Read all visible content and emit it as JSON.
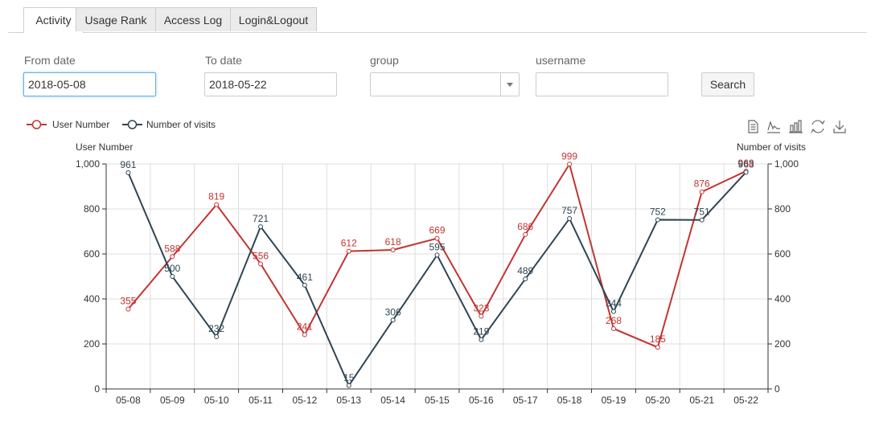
{
  "tabs": [
    {
      "label": "Activity",
      "active": true
    },
    {
      "label": "Usage Rank",
      "active": false
    },
    {
      "label": "Access Log",
      "active": false
    },
    {
      "label": "Login&Logout",
      "active": false
    }
  ],
  "filters": {
    "from_label": "From date",
    "from_value": "2018-05-08",
    "to_label": "To date",
    "to_value": "2018-05-22",
    "group_label": "group",
    "group_value": "",
    "username_label": "username",
    "username_value": "",
    "search_label": "Search"
  },
  "toolbox": [
    "data-view-icon",
    "line-chart-icon",
    "bar-chart-icon",
    "restore-icon",
    "download-icon"
  ],
  "colors": {
    "series1": "#c23531",
    "series2": "#2f4554"
  },
  "chart_data": {
    "type": "line",
    "categories": [
      "05-08",
      "05-09",
      "05-10",
      "05-11",
      "05-12",
      "05-13",
      "05-14",
      "05-15",
      "05-16",
      "05-17",
      "05-18",
      "05-19",
      "05-20",
      "05-21",
      "05-22"
    ],
    "series": [
      {
        "name": "User Number",
        "values": [
          355,
          588,
          819,
          556,
          241,
          612,
          618,
          669,
          323,
          686,
          999,
          268,
          185,
          876,
          968
        ],
        "color": "#c23531"
      },
      {
        "name": "Number of visits",
        "values": [
          961,
          500,
          232,
          721,
          461,
          15,
          306,
          595,
          219,
          489,
          757,
          344,
          752,
          751,
          963
        ],
        "color": "#2f4554"
      }
    ],
    "ylabel_left": "User Number",
    "ylabel_right": "Number of visits",
    "ylim": [
      0,
      1000
    ],
    "yticks": [
      "0",
      "200",
      "400",
      "600",
      "800",
      "1,000"
    ],
    "legend_position": "top-left",
    "grid": true
  }
}
